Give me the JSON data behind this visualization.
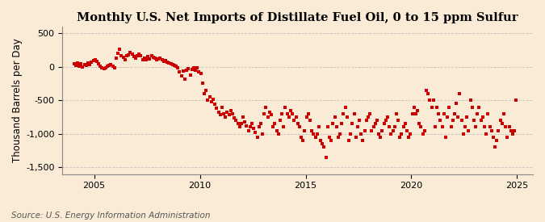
{
  "title": "Monthly U.S. Net Imports of Distillate Fuel Oil, 0 to 15 ppm Sulfur",
  "ylabel": "Thousand Barrels per Day",
  "source": "Source: U.S. Energy Information Administration",
  "background_color": "#faebd7",
  "plot_bg_color": "#faebd7",
  "marker_color": "#cc0000",
  "marker_size": 7,
  "xlim": [
    2003.5,
    2025.75
  ],
  "ylim": [
    -1600,
    600
  ],
  "yticks": [
    -1500,
    -1000,
    -500,
    0,
    500
  ],
  "xticks": [
    2005,
    2010,
    2015,
    2020,
    2025
  ],
  "grid_color": "#c0c0c0",
  "title_fontsize": 10.5,
  "ylabel_fontsize": 8.5,
  "source_fontsize": 7.5,
  "data": {
    "2004-01": 50,
    "2004-02": 20,
    "2004-03": 60,
    "2004-04": 10,
    "2004-05": 40,
    "2004-06": -5,
    "2004-07": 30,
    "2004-08": 15,
    "2004-09": 55,
    "2004-10": 30,
    "2004-11": 70,
    "2004-12": 90,
    "2005-01": 100,
    "2005-02": 80,
    "2005-03": 50,
    "2005-04": 10,
    "2005-05": -20,
    "2005-06": -30,
    "2005-07": -15,
    "2005-08": 5,
    "2005-09": 20,
    "2005-10": 30,
    "2005-11": 10,
    "2005-12": -10,
    "2006-01": 130,
    "2006-02": 200,
    "2006-03": 260,
    "2006-04": 170,
    "2006-05": 140,
    "2006-06": 110,
    "2006-07": 160,
    "2006-08": 180,
    "2006-09": 210,
    "2006-10": 195,
    "2006-11": 150,
    "2006-12": 130,
    "2007-01": 170,
    "2007-02": 185,
    "2007-03": 160,
    "2007-04": 110,
    "2007-05": 130,
    "2007-06": 100,
    "2007-07": 150,
    "2007-08": 120,
    "2007-09": 160,
    "2007-10": 145,
    "2007-11": 125,
    "2007-12": 110,
    "2008-01": 120,
    "2008-02": 130,
    "2008-03": 105,
    "2008-04": 85,
    "2008-05": 90,
    "2008-06": 75,
    "2008-07": 55,
    "2008-08": 50,
    "2008-09": 30,
    "2008-10": 15,
    "2008-11": 5,
    "2008-12": -20,
    "2009-01": -80,
    "2009-02": -130,
    "2009-03": -60,
    "2009-04": -180,
    "2009-05": -50,
    "2009-06": -30,
    "2009-07": -120,
    "2009-08": -40,
    "2009-09": -20,
    "2009-10": -50,
    "2009-11": -10,
    "2009-12": -80,
    "2010-01": -100,
    "2010-02": -250,
    "2010-03": -400,
    "2010-04": -350,
    "2010-05": -500,
    "2010-06": -450,
    "2010-07": -520,
    "2010-08": -480,
    "2010-09": -560,
    "2010-10": -620,
    "2010-11": -680,
    "2010-12": -720,
    "2011-01": -600,
    "2011-02": -700,
    "2011-03": -750,
    "2011-04": -680,
    "2011-05": -720,
    "2011-06": -650,
    "2011-07": -700,
    "2011-08": -760,
    "2011-09": -800,
    "2011-10": -850,
    "2011-11": -900,
    "2011-12": -850,
    "2012-01": -750,
    "2012-02": -820,
    "2012-03": -880,
    "2012-04": -950,
    "2012-05": -900,
    "2012-06": -850,
    "2012-07": -920,
    "2012-08": -980,
    "2012-09": -1050,
    "2012-10": -900,
    "2012-11": -850,
    "2012-12": -1000,
    "2013-01": -700,
    "2013-02": -600,
    "2013-03": -750,
    "2013-04": -680,
    "2013-05": -720,
    "2013-06": -900,
    "2013-07": -850,
    "2013-08": -950,
    "2013-09": -1000,
    "2013-10": -800,
    "2013-11": -700,
    "2013-12": -900,
    "2014-01": -600,
    "2014-02": -700,
    "2014-03": -750,
    "2014-04": -650,
    "2014-05": -700,
    "2014-06": -800,
    "2014-07": -750,
    "2014-08": -850,
    "2014-09": -900,
    "2014-10": -1050,
    "2014-11": -1100,
    "2014-12": -950,
    "2015-01": -750,
    "2015-02": -700,
    "2015-03": -800,
    "2015-04": -950,
    "2015-05": -1000,
    "2015-06": -1050,
    "2015-07": -1000,
    "2015-08": -900,
    "2015-09": -1100,
    "2015-10": -1150,
    "2015-11": -1200,
    "2015-12": -1350,
    "2016-01": -900,
    "2016-02": -1050,
    "2016-03": -1100,
    "2016-04": -850,
    "2016-05": -750,
    "2016-06": -900,
    "2016-07": -1050,
    "2016-08": -1000,
    "2016-09": -850,
    "2016-10": -700,
    "2016-11": -600,
    "2016-12": -750,
    "2017-01": -1100,
    "2017-02": -1000,
    "2017-03": -850,
    "2017-04": -700,
    "2017-05": -1050,
    "2017-06": -900,
    "2017-07": -800,
    "2017-08": -1000,
    "2017-09": -1100,
    "2017-10": -950,
    "2017-11": -800,
    "2017-12": -750,
    "2018-01": -700,
    "2018-02": -950,
    "2018-03": -900,
    "2018-04": -850,
    "2018-05": -800,
    "2018-06": -1000,
    "2018-07": -1050,
    "2018-08": -950,
    "2018-09": -850,
    "2018-10": -800,
    "2018-11": -750,
    "2018-12": -900,
    "2019-01": -1000,
    "2019-02": -950,
    "2019-03": -900,
    "2019-04": -700,
    "2019-05": -800,
    "2019-06": -1050,
    "2019-07": -1000,
    "2019-08": -900,
    "2019-09": -850,
    "2019-10": -950,
    "2019-11": -1050,
    "2019-12": -1000,
    "2020-01": -700,
    "2020-02": -600,
    "2020-03": -700,
    "2020-04": -650,
    "2020-05": -850,
    "2020-06": -900,
    "2020-07": -1000,
    "2020-08": -950,
    "2020-09": -350,
    "2020-10": -400,
    "2020-11": -500,
    "2020-12": -600,
    "2021-01": -500,
    "2021-02": -900,
    "2021-03": -600,
    "2021-04": -700,
    "2021-05": -800,
    "2021-06": -900,
    "2021-07": -700,
    "2021-08": -1050,
    "2021-09": -750,
    "2021-10": -600,
    "2021-11": -900,
    "2021-12": -800,
    "2022-01": -700,
    "2022-02": -550,
    "2022-03": -750,
    "2022-04": -400,
    "2022-05": -800,
    "2022-06": -1000,
    "2022-07": -900,
    "2022-08": -750,
    "2022-09": -950,
    "2022-10": -500,
    "2022-11": -600,
    "2022-12": -800,
    "2023-01": -900,
    "2023-02": -700,
    "2023-03": -600,
    "2023-04": -800,
    "2023-05": -750,
    "2023-06": -900,
    "2023-07": -1000,
    "2023-08": -700,
    "2023-09": -900,
    "2023-10": -950,
    "2023-11": -1050,
    "2023-12": -1200,
    "2024-01": -1100,
    "2024-02": -950,
    "2024-03": -800,
    "2024-04": -850,
    "2024-05": -700,
    "2024-06": -900,
    "2024-07": -1050,
    "2024-08": -900,
    "2024-09": -950,
    "2024-10": -1000,
    "2024-11": -950,
    "2024-12": -500
  }
}
